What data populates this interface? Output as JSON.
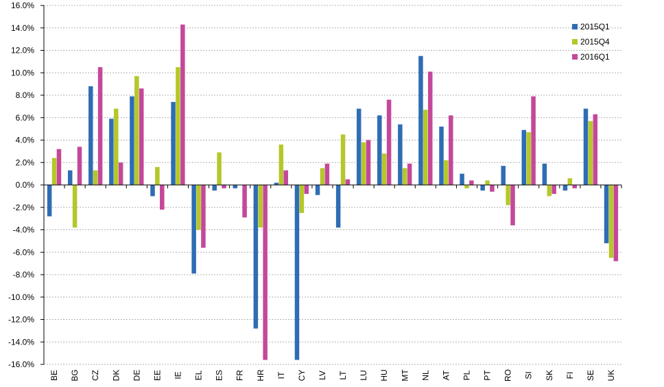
{
  "chart_data": {
    "type": "bar",
    "categories": [
      "BE",
      "BG",
      "CZ",
      "DK",
      "DE",
      "EE",
      "IE",
      "EL",
      "ES",
      "FR",
      "HR",
      "IT",
      "CY",
      "LV",
      "LT",
      "LU",
      "HU",
      "MT",
      "NL",
      "AT",
      "PL",
      "PT",
      "RO",
      "SI",
      "SK",
      "FI",
      "SE",
      "UK"
    ],
    "series": [
      {
        "name": "2015Q1",
        "color": "#2E6DB4",
        "values": [
          -2.8,
          1.3,
          8.8,
          5.9,
          7.9,
          -1.0,
          7.4,
          -7.9,
          -0.5,
          -0.3,
          -12.8,
          0.2,
          -15.6,
          -0.9,
          -3.8,
          6.8,
          6.2,
          5.4,
          11.5,
          5.2,
          1.0,
          -0.5,
          1.7,
          4.9,
          1.9,
          -0.5,
          6.8,
          -5.2
        ]
      },
      {
        "name": "2015Q4",
        "color": "#B5C72A",
        "values": [
          2.4,
          -3.8,
          1.3,
          6.8,
          9.7,
          1.6,
          10.5,
          -4.0,
          2.9,
          0.0,
          -3.8,
          3.6,
          -2.5,
          1.5,
          4.5,
          3.8,
          2.8,
          1.5,
          6.7,
          2.2,
          -0.3,
          0.4,
          -1.8,
          4.7,
          -1.0,
          0.6,
          5.7,
          -6.5
        ]
      },
      {
        "name": "2016Q1",
        "color": "#C4489A",
        "values": [
          3.2,
          3.4,
          10.5,
          2.0,
          8.6,
          -2.2,
          14.3,
          -5.6,
          -0.3,
          -2.9,
          -15.6,
          1.3,
          -0.8,
          1.9,
          0.5,
          4.0,
          7.6,
          1.9,
          10.1,
          6.2,
          0.4,
          -0.6,
          -3.6,
          7.9,
          -0.8,
          -0.3,
          6.3,
          -6.8
        ]
      }
    ],
    "y_ticks": [
      "16.0%",
      "14.0%",
      "12.0%",
      "10.0%",
      "8.0%",
      "6.0%",
      "4.0%",
      "2.0%",
      "0.0%",
      "-2.0%",
      "-4.0%",
      "-6.0%",
      "-8.0%",
      "-10.0%",
      "-12.0%",
      "-14.0%",
      "-16.0%"
    ],
    "ylim": [
      -16,
      16
    ],
    "grid": true,
    "legend_position": "top-right"
  }
}
